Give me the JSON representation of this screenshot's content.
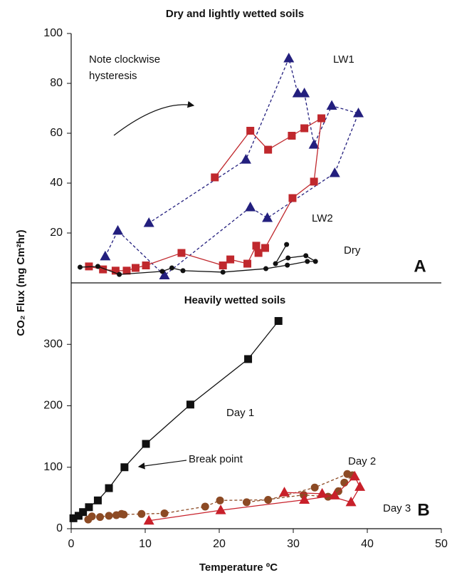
{
  "chart_data": [
    {
      "type": "line",
      "title": "Dry and lightly wetted soils",
      "ylabel": "CO₂ Flux (mg Cm²hr)",
      "xlim": [
        0,
        50
      ],
      "ylim": [
        0,
        100
      ],
      "yticks": [
        20,
        40,
        60,
        80,
        100
      ],
      "annotations": [
        "Note clockwise",
        "hysteresis"
      ],
      "panel_label": "A",
      "series": [
        {
          "name": "LW1",
          "color": "#231f7e",
          "marker": "triangle",
          "dashed": true,
          "x": [
            4.6,
            6.3,
            12.6,
            24.2,
            26.5,
            35.6,
            38.8,
            35.2,
            32.8,
            31.5,
            30.6,
            29.4,
            23.6,
            10.5
          ],
          "values": [
            10.6,
            20.9,
            3,
            30.3,
            26,
            44,
            68,
            71,
            55.4,
            76,
            76,
            90,
            49.4,
            24
          ]
        },
        {
          "name": "LW2",
          "color": "#c0282d",
          "marker": "square",
          "dashed": false,
          "x": [
            2.4,
            4.3,
            6.0,
            7.5,
            8.7,
            10.1,
            14.9,
            20.5,
            21.5,
            23.8,
            25.0,
            25.3,
            26.2,
            29.9,
            32.8,
            33.8,
            31.5,
            29.8,
            26.6,
            24.2,
            19.4
          ],
          "values": [
            6.6,
            5.4,
            4.9,
            4.9,
            6,
            7,
            12,
            7,
            9.4,
            7.7,
            14.9,
            12,
            14,
            34,
            40.6,
            66,
            62,
            59,
            53.4,
            61,
            42.3
          ]
        },
        {
          "name": "Dry",
          "color": "#111111",
          "marker": "circle",
          "dashed": false,
          "x": [
            1.2,
            3.6,
            6.5,
            12.3,
            13.6,
            15.1,
            20.5,
            26.3,
            29.2,
            31.9,
            33.0,
            31.7,
            29.3,
            27.6,
            29.1
          ],
          "values": [
            6.3,
            6.6,
            3.4,
            4.6,
            6,
            4.9,
            4.3,
            5.7,
            7.1,
            8.6,
            8.6,
            10.9,
            10,
            7.7,
            15.4
          ]
        }
      ]
    },
    {
      "type": "line",
      "title": "Heavily wetted soils",
      "xlabel": "Temperature ºC",
      "xlim": [
        0,
        50
      ],
      "xticks": [
        0,
        10,
        20,
        30,
        40,
        50
      ],
      "ylim": [
        0,
        400
      ],
      "yticks": [
        0,
        100,
        200,
        300
      ],
      "annotations": [
        "Break point"
      ],
      "panel_label": "B",
      "series": [
        {
          "name": "Day 1",
          "color": "#111111",
          "marker": "square",
          "dashed": false,
          "x": [
            0.3,
            1.0,
            1.6,
            2.4,
            3.6,
            5.1,
            7.2,
            10.1,
            16.1,
            23.9,
            28.0
          ],
          "values": [
            17,
            21,
            27,
            35,
            46,
            66,
            100,
            138,
            202,
            276,
            338
          ]
        },
        {
          "name": "Day 2",
          "color": "#8c4a24",
          "marker": "circle",
          "dashed": true,
          "x": [
            2.3,
            2.8,
            3.9,
            5.1,
            6.1,
            6.8,
            7.1,
            9.5,
            12.6,
            18.1,
            20.1,
            26.6,
            32.9,
            37.3,
            38.0,
            36.9,
            36.1,
            34.7,
            31.4,
            23.7
          ],
          "values": [
            15,
            20,
            19,
            21,
            22,
            24,
            23,
            24,
            25,
            36,
            46,
            47,
            67,
            89,
            87,
            75,
            61,
            52,
            55,
            43
          ]
        },
        {
          "name": "Day 3",
          "color": "#c8202a",
          "marker": "triangle",
          "dashed": false,
          "x": [
            10.5,
            20.2,
            31.5,
            35.6,
            38.3,
            39.0,
            37.8,
            33.9,
            28.8
          ],
          "values": [
            13,
            30,
            47,
            54,
            85,
            68,
            43,
            57,
            59
          ]
        }
      ]
    }
  ]
}
